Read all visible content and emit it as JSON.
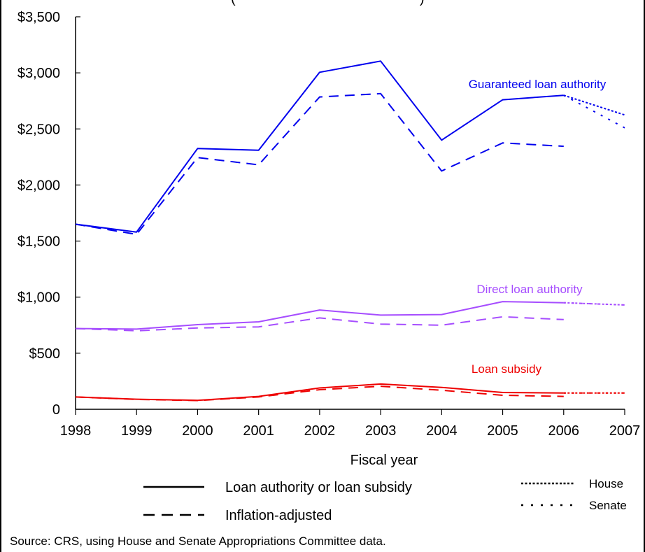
{
  "chart_data": {
    "type": "line",
    "title": "(",
    "xlabel": "Fiscal year",
    "ylabel": "",
    "ylim": [
      0,
      3500
    ],
    "xlim": [
      1998,
      2007
    ],
    "x": [
      1998,
      1999,
      2000,
      2001,
      2002,
      2003,
      2004,
      2005,
      2006,
      2007
    ],
    "x_tick_labels": [
      "1998",
      "1999",
      "2000",
      "2001",
      "2002",
      "2003",
      "2004",
      "2005",
      "2006",
      "2007"
    ],
    "y_ticks": [
      0,
      500,
      1000,
      1500,
      2000,
      2500,
      3000,
      3500
    ],
    "y_tick_labels": [
      "0",
      "$500",
      "$1,000",
      "$1,500",
      "$2,000",
      "$2,500",
      "$3,000",
      "$3,500"
    ],
    "grid": false,
    "groups": [
      {
        "label": "Guaranteed loan authority",
        "color": "#0000ee",
        "nominal": [
          1650,
          1580,
          2325,
          2310,
          3005,
          3105,
          2400,
          2760,
          2800
        ],
        "adjusted": [
          1650,
          1560,
          2245,
          2180,
          2785,
          2815,
          2125,
          2375,
          2345
        ],
        "house": [
          [
            2006,
            2800
          ],
          [
            2007,
            2625
          ]
        ],
        "senate": [
          [
            2006,
            2800
          ],
          [
            2007,
            2510
          ]
        ]
      },
      {
        "label": "Direct loan authority",
        "color": "#a64dff",
        "nominal": [
          720,
          715,
          755,
          780,
          885,
          840,
          845,
          960,
          950
        ],
        "adjusted": [
          720,
          700,
          725,
          735,
          815,
          760,
          750,
          825,
          800
        ],
        "house": [
          [
            2006,
            950
          ],
          [
            2007,
            930
          ]
        ],
        "senate": [
          [
            2006,
            950
          ],
          [
            2007,
            930
          ]
        ]
      },
      {
        "label": "Loan subsidy",
        "color": "#ee0000",
        "nominal": [
          110,
          90,
          80,
          115,
          190,
          225,
          195,
          150,
          145
        ],
        "adjusted": [
          110,
          88,
          78,
          110,
          175,
          205,
          170,
          125,
          115
        ],
        "house": [
          [
            2006,
            145
          ],
          [
            2007,
            145
          ]
        ],
        "senate": [
          [
            2006,
            145
          ],
          [
            2007,
            145
          ]
        ]
      }
    ],
    "legend": {
      "solid": "Loan authority or loan subsidy",
      "dashed": "Inflation-adjusted",
      "house": "House",
      "senate": "Senate",
      "placement": "bottom"
    },
    "source": "Source: CRS, using House and Senate Appropriations Committee data."
  }
}
